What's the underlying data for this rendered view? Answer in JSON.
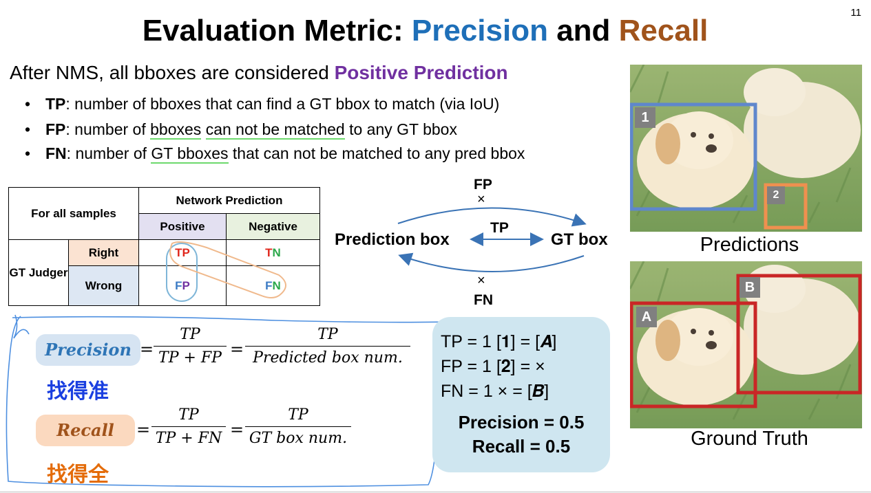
{
  "page_number": "11",
  "title": {
    "prefix": "Evaluation Metric: ",
    "precision": "Precision",
    "and": " and ",
    "recall": "Recall"
  },
  "intro": {
    "text": "After NMS, all bboxes are considered ",
    "highlight": "Positive Prediction"
  },
  "bullets": [
    {
      "term": "TP",
      "p1": ": number of bboxes that can find a GT bbox to match (via IoU)"
    },
    {
      "term": "FP",
      "p1": ": number of ",
      "u1": "bboxes",
      "p2": " ",
      "u2": "can not be matched",
      "p3": " to any GT bbox"
    },
    {
      "term": "FN",
      "p1": ": number of ",
      "u1": "GT bboxes",
      "p2": " that can not be matched to any pred bbox"
    }
  ],
  "table": {
    "corner": "For all samples",
    "net_header": "Network Prediction",
    "positive": "Positive",
    "negative": "Negative",
    "gt_judger": "GT Judger",
    "right": "Right",
    "wrong": "Wrong",
    "tp": {
      "a": "T",
      "b": "P"
    },
    "tn": {
      "a": "T",
      "b": "N"
    },
    "fp": {
      "a": "F",
      "b": "P"
    },
    "fn": {
      "a": "F",
      "b": "N"
    }
  },
  "diagram": {
    "fp": "FP",
    "tp": "TP",
    "fn": "FN",
    "cross": "×",
    "pred_box": "Prediction box",
    "gt_box": "GT box"
  },
  "formulas": {
    "precision_label": "Precision",
    "recall_label": "Recall",
    "eq": "=",
    "tp": "TP",
    "tp_fp": "TP + FP",
    "tp_fn": "TP + FN",
    "pred_num": "Predicted box num.",
    "gt_num": "GT box num.",
    "precision_cn": "找得准",
    "recall_cn": "找得全"
  },
  "result": {
    "tp_line": "TP = 1   [𝟏] = [𝑨]",
    "fp_line": "FP = 1   [𝟐] = ×",
    "fn_line": "FN = 1    × = [𝑩]",
    "precision": "Precision = 0.5",
    "recall": "Recall = 0.5"
  },
  "images": {
    "pred_caption": "Predictions",
    "gt_caption": "Ground Truth",
    "box1": "1",
    "box2": "2",
    "boxA": "A",
    "boxB": "B"
  },
  "colors": {
    "precision": "#1e6fb8",
    "recall": "#a0531b",
    "positive_prediction": "#7030a0",
    "gt_box": "#c00000",
    "pred_box_1": "#4472c4",
    "pred_box_2": "#ed7d31"
  }
}
